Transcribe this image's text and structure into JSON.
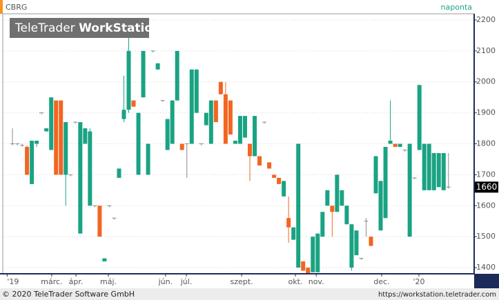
{
  "chart_data": {
    "type": "candlestick",
    "symbol": "CBRG",
    "interval": "naponta",
    "logo": {
      "brand": "TeleTrader",
      "product": "WorkStation"
    },
    "footer_left": "© 2020 TeleTrader Software GmbH",
    "footer_right": "https://workstation.teletrader.com",
    "up_color": "#1aa383",
    "down_color": "#f26522",
    "flat_color": "#8a8a8a",
    "grid": true,
    "ylim": [
      1380,
      2220
    ],
    "yticks": [
      1400,
      1500,
      1600,
      1700,
      1800,
      1900,
      2000,
      2100,
      2200
    ],
    "xlim": [
      -2,
      95.3
    ],
    "xticks": [
      {
        "value": -1.1,
        "label": "'19"
      },
      {
        "value": 8.1,
        "label": "márc."
      },
      {
        "value": 13.1,
        "label": "ápr."
      },
      {
        "value": 19.8,
        "label": "máj."
      },
      {
        "value": 31.6,
        "label": "jún."
      },
      {
        "value": 35.9,
        "label": "júl."
      },
      {
        "value": 47.3,
        "label": "szept."
      },
      {
        "value": 58.4,
        "label": "okt."
      },
      {
        "value": 62.7,
        "label": "nov."
      },
      {
        "value": 76.2,
        "label": "dec."
      },
      {
        "value": 83.9,
        "label": "'20"
      }
    ],
    "categories": [
      null,
      null,
      null,
      null,
      null,
      null,
      null,
      null,
      null,
      null,
      null,
      null,
      null,
      null,
      null,
      null,
      null,
      null,
      null,
      null,
      null,
      null,
      null,
      null,
      null,
      null,
      null,
      null,
      null,
      null,
      null,
      null,
      null,
      null,
      null,
      null,
      null,
      null,
      null,
      null,
      null,
      null,
      null,
      null,
      null,
      null,
      null,
      null,
      null,
      null,
      null,
      null,
      null,
      null,
      null,
      null,
      null,
      null,
      null,
      null,
      null,
      null,
      null,
      null,
      null,
      null,
      null,
      null,
      null,
      null,
      null,
      null,
      null,
      null,
      null,
      null,
      null,
      null,
      null,
      null,
      null,
      null,
      null,
      null,
      null,
      null,
      null,
      null,
      null,
      null,
      null
    ],
    "open": [
      1800,
      1800,
      1795,
      1790,
      1670,
      1800,
      1900,
      1840,
      1780,
      1940,
      1940,
      1700,
      1700,
      1870,
      1510,
      1800,
      1600,
      1600,
      1600,
      1420,
      1600,
      1560,
      1690,
      1880,
      1910,
      1940,
      1700,
      1950,
      1700,
      2100,
      2040,
      1940,
      1780,
      1800,
      1940,
      1800,
      1800,
      1800,
      1900,
      1800,
      1860,
      1800,
      1940,
      2000,
      1960,
      1940,
      1800,
      1800,
      1820,
      1800,
      1760,
      1760,
      1870,
      1740,
      1700,
      1690,
      1630,
      1560,
      1490,
      1400,
      1420,
      1400,
      1385,
      1385,
      1500,
      1600,
      1600,
      1580,
      1600,
      1540,
      1400,
      1440,
      1430,
      1550,
      1500,
      1640,
      1520,
      1560,
      1800,
      1800,
      1790,
      1780,
      1500,
      1690,
      1780,
      1650,
      1650,
      1650,
      1660,
      1650,
      1660
    ],
    "high": [
      1850,
      1800,
      1800,
      1795,
      1810,
      1810,
      1900,
      1850,
      1950,
      1940,
      1940,
      1870,
      1700,
      1870,
      1870,
      1850,
      1850,
      1600,
      1600,
      1430,
      1600,
      1560,
      1720,
      2020,
      2200,
      1940,
      1900,
      2100,
      1800,
      2100,
      2060,
      1940,
      1880,
      1940,
      2100,
      1800,
      1800,
      2040,
      2040,
      1800,
      1900,
      1940,
      1940,
      2000,
      2000,
      1940,
      1810,
      1890,
      1890,
      1800,
      1890,
      1760,
      1870,
      1740,
      1700,
      1690,
      1680,
      1630,
      1530,
      1800,
      1420,
      1400,
      1500,
      1510,
      1580,
      1650,
      1600,
      1700,
      1650,
      1600,
      1540,
      1520,
      1430,
      1560,
      1500,
      1760,
      1680,
      1790,
      1940,
      1800,
      1800,
      1780,
      1800,
      1690,
      1990,
      1800,
      1800,
      1770,
      1770,
      1770,
      1770
    ],
    "low": [
      1795,
      1795,
      1790,
      1700,
      1670,
      1790,
      1895,
      1840,
      1780,
      1700,
      1700,
      1600,
      1695,
      1865,
      1510,
      1800,
      1600,
      1595,
      1500,
      1420,
      1595,
      1555,
      1690,
      1870,
      1900,
      1920,
      1700,
      1950,
      1700,
      2095,
      2040,
      1935,
      1780,
      1800,
      1940,
      1780,
      1690,
      1800,
      1900,
      1795,
      1860,
      1800,
      1870,
      1960,
      1800,
      1830,
      1800,
      1800,
      1820,
      1680,
      1760,
      1730,
      1865,
      1720,
      1690,
      1670,
      1630,
      1480,
      1490,
      1400,
      1390,
      1380,
      1385,
      1385,
      1500,
      1600,
      1500,
      1580,
      1600,
      1540,
      1390,
      1440,
      1425,
      1500,
      1470,
      1640,
      1520,
      1560,
      1800,
      1790,
      1790,
      1775,
      1500,
      1685,
      1780,
      1650,
      1650,
      1650,
      1660,
      1650,
      1655
    ],
    "close": [
      1800,
      1800,
      1795,
      1700,
      1810,
      1810,
      1900,
      1850,
      1950,
      1700,
      1700,
      1870,
      1700,
      1870,
      1870,
      1850,
      1840,
      1600,
      1500,
      1430,
      1600,
      1560,
      1720,
      1910,
      2100,
      1920,
      1900,
      2100,
      1800,
      2100,
      2060,
      1940,
      1880,
      1940,
      2100,
      1780,
      1800,
      2040,
      2040,
      1800,
      1900,
      1940,
      1870,
      1960,
      1800,
      1830,
      1810,
      1890,
      1890,
      1760,
      1890,
      1730,
      1870,
      1720,
      1690,
      1670,
      1680,
      1530,
      1530,
      1800,
      1390,
      1380,
      1500,
      1510,
      1580,
      1650,
      1580,
      1700,
      1650,
      1600,
      1540,
      1520,
      1430,
      1550,
      1470,
      1760,
      1680,
      1790,
      1810,
      1790,
      1800,
      1780,
      1800,
      1690,
      1990,
      1800,
      1800,
      1770,
      1770,
      1770,
      1660
    ]
  }
}
